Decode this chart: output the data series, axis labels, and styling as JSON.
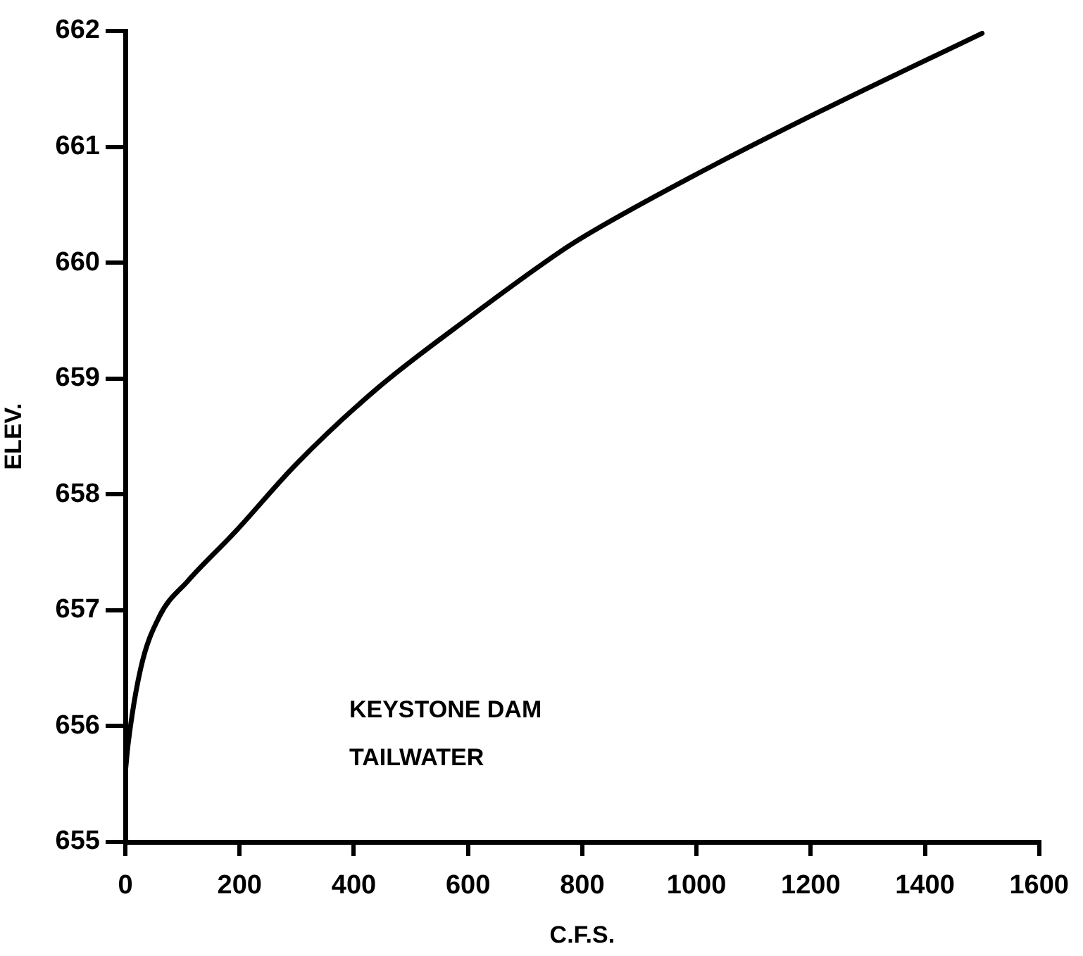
{
  "chart_data": {
    "type": "line",
    "xlabel": "C.F.S.",
    "ylabel": "ELEV.",
    "annotations": [
      "KEYSTONE DAM",
      "TAILWATER"
    ],
    "x": [
      0,
      5,
      27,
      60,
      109,
      193,
      299,
      440,
      603,
      769,
      818,
      991,
      1214,
      1500
    ],
    "series": [
      {
        "color": "#000000",
        "values": [
          655.6,
          655.85,
          656.5,
          656.95,
          657.25,
          657.68,
          658.26,
          658.91,
          659.53,
          660.12,
          660.27,
          660.74,
          661.3,
          661.98
        ]
      }
    ],
    "xlim": [
      0,
      1600
    ],
    "xticks": [
      0,
      200,
      400,
      600,
      800,
      1000,
      1200,
      1400,
      1600
    ],
    "ylim": [
      655,
      662
    ],
    "yticks": [
      655,
      656,
      657,
      658,
      659,
      660,
      661,
      662
    ],
    "grid": false,
    "legend": false,
    "marker": "none",
    "line_style": "solid"
  }
}
